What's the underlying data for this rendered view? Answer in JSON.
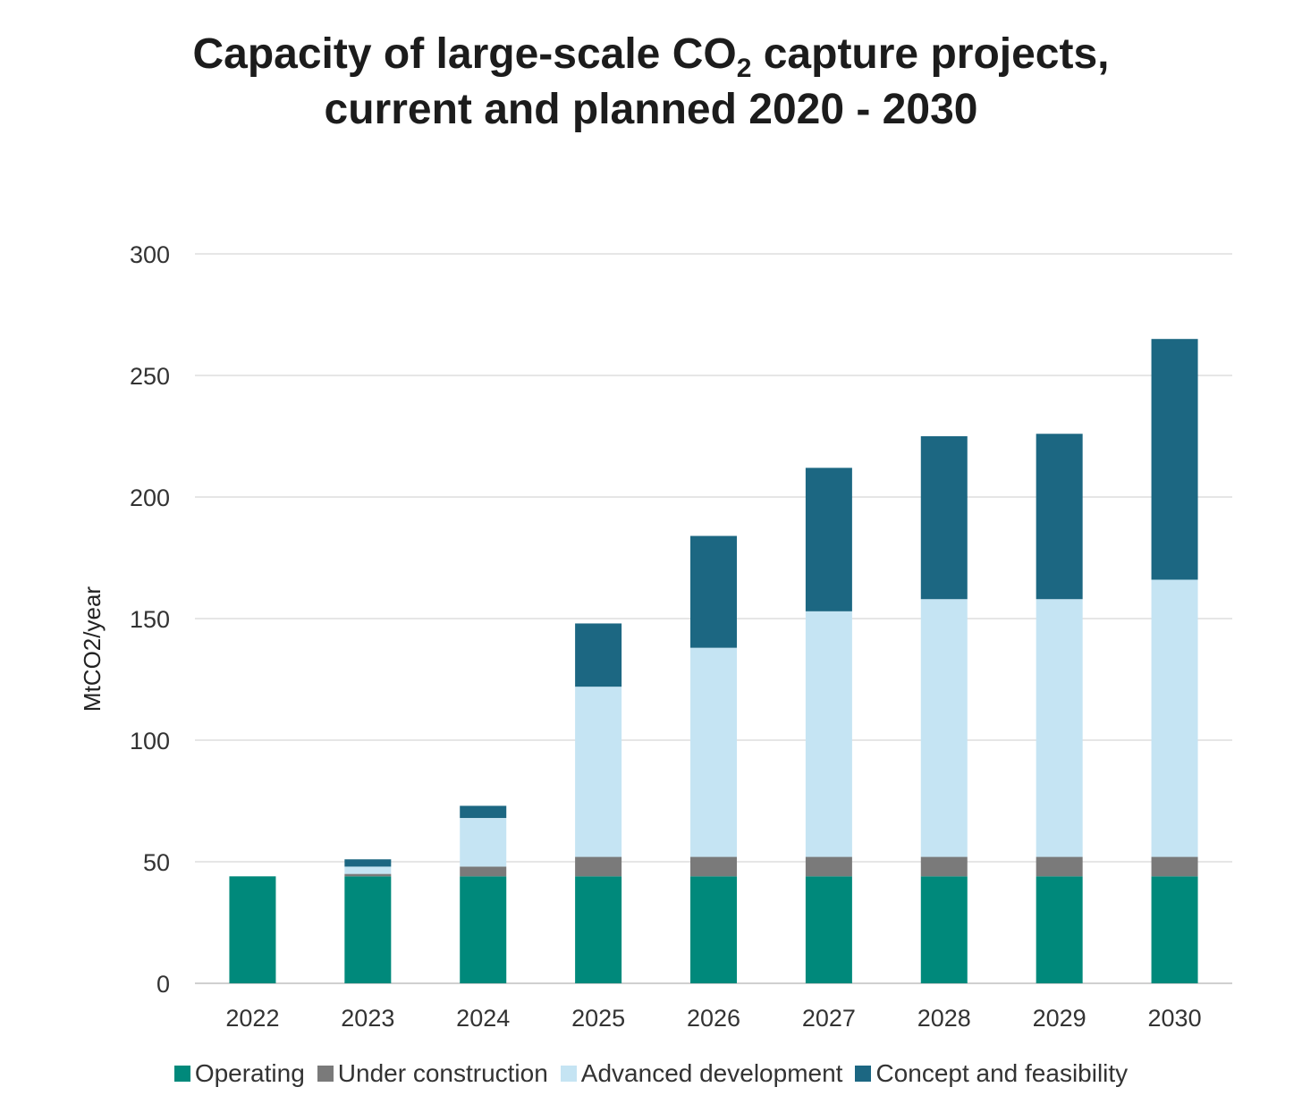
{
  "title": {
    "line1_pre": "Capacity of large-scale CO",
    "line1_sub": "2",
    "line1_post": " capture projects,",
    "line2": "current and planned 2020 - 2030"
  },
  "chart_data": {
    "type": "bar",
    "stacked": true,
    "title": "Capacity of large-scale CO2 capture projects, current and planned 2020 - 2030",
    "xlabel": "",
    "ylabel": "MtCO2/year",
    "ylim": [
      0,
      300
    ],
    "yticks": [
      0,
      50,
      100,
      150,
      200,
      250,
      300
    ],
    "grid": true,
    "legend_position": "bottom",
    "categories": [
      "2022",
      "2023",
      "2024",
      "2025",
      "2026",
      "2027",
      "2028",
      "2029",
      "2030"
    ],
    "series": [
      {
        "name": "Operating",
        "color": "#00897b",
        "values": [
          44,
          44,
          44,
          44,
          44,
          44,
          44,
          44,
          44
        ]
      },
      {
        "name": "Under construction",
        "color": "#7a7a7a",
        "values": [
          0,
          1,
          4,
          8,
          8,
          8,
          8,
          8,
          8
        ]
      },
      {
        "name": "Advanced development",
        "color": "#c5e4f3",
        "values": [
          0,
          3,
          20,
          70,
          86,
          101,
          106,
          106,
          114
        ]
      },
      {
        "name": "Concept and feasibility",
        "color": "#1c6782",
        "values": [
          0,
          3,
          5,
          26,
          46,
          59,
          67,
          68,
          99
        ]
      }
    ]
  }
}
